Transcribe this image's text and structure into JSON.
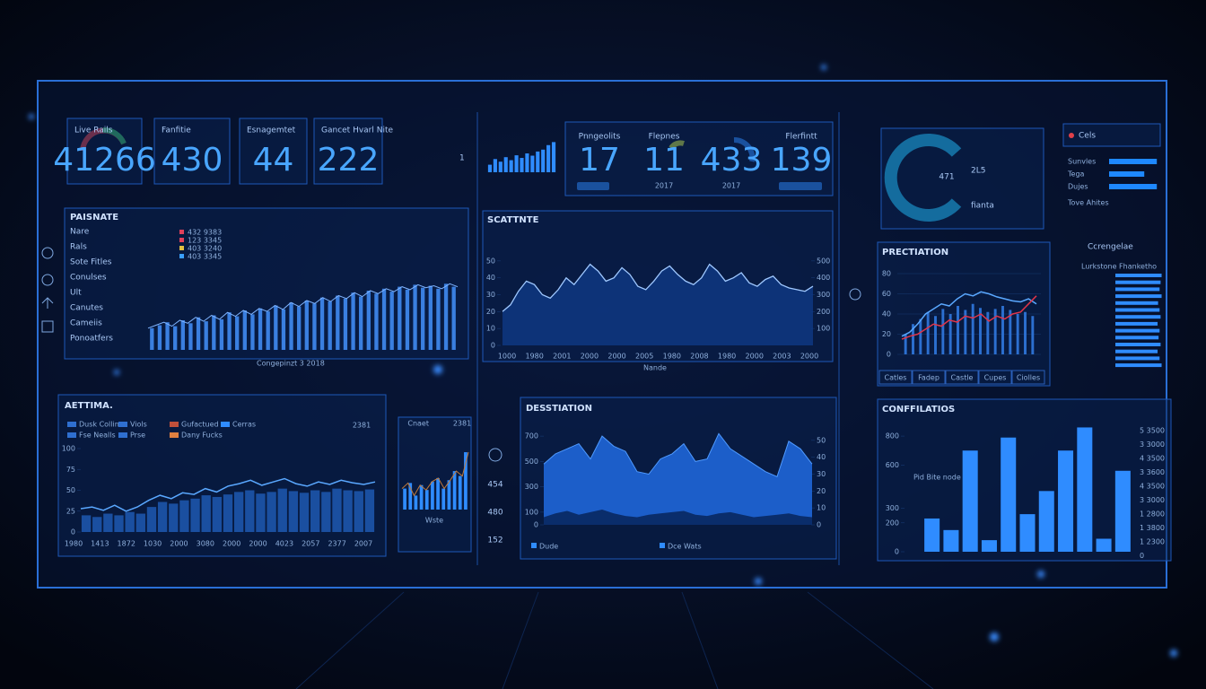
{
  "header_kpis": {
    "cards": [
      {
        "label": "Live Rails",
        "value": 41266
      },
      {
        "label": "Fanfitie",
        "value": 430
      },
      {
        "label": "Esnagemtet",
        "value": 44
      },
      {
        "label": "Gancet Hvarl Nite",
        "value": 222
      }
    ],
    "side": 1
  },
  "mid_kpis": {
    "color": "#2f8cff",
    "ylim": [
      0,
      100
    ],
    "bars": [
      20,
      35,
      28,
      40,
      32,
      45,
      38,
      50,
      44,
      55,
      60,
      72,
      80
    ],
    "cards": [
      {
        "label": "Pnngeolits",
        "value": 17
      },
      {
        "label": "Flepnes",
        "value": 11,
        "sub": "2017"
      },
      {
        "value": 433,
        "sub": "2017"
      },
      {
        "label": "Flerfintt",
        "value": 139
      }
    ]
  },
  "summary": {
    "ring_value": 471,
    "value": "2L5",
    "caption": "fianta",
    "legend": "Cels",
    "color": "#1e88ff",
    "xlim": [
      0,
      100
    ],
    "rows": [
      {
        "label": "Sunvles",
        "value": 95
      },
      {
        "label": "Tega",
        "value": 70
      },
      {
        "label": "Dujes",
        "value": 95
      }
    ],
    "note": "Tove Ahites"
  },
  "panel_a": {
    "title": "PAISNATE",
    "color": "#3a7fe0",
    "ylim": [
      0,
      100
    ],
    "menu": [
      "Nare",
      "Rals",
      "Sote Fitles",
      "Conulses",
      "Ult",
      "Canutes",
      "Cameiis",
      "Ponoatfers"
    ],
    "legend": [
      "432 9383",
      "123 3345",
      "403 3240",
      "403 3345"
    ],
    "legend_colors": [
      "#e0405a",
      "#e0405a",
      "#e0c040",
      "#3a9fff"
    ],
    "footer": "Congepinzt 3 2018",
    "values": [
      22,
      25,
      28,
      24,
      30,
      27,
      33,
      29,
      35,
      31,
      38,
      34,
      40,
      36,
      42,
      39,
      45,
      41,
      48,
      44,
      50,
      47,
      53,
      49,
      55,
      52,
      58,
      54,
      60,
      57,
      62,
      59,
      64,
      61,
      66,
      63,
      65,
      62,
      67,
      64
    ]
  },
  "panel_b": {
    "title": "SCATTNTE",
    "x_label": "Nande",
    "color": "#9fc8ff",
    "fill": "#0f3a86",
    "ylim": [
      0,
      60
    ],
    "yticks": [
      0,
      10,
      20,
      30,
      40,
      50
    ],
    "y2lim": [
      0,
      600
    ],
    "y2ticks": [
      100,
      200,
      300,
      400,
      500
    ],
    "xlabels": [
      "1000",
      "1980",
      "2001",
      "2000",
      "2000",
      "2005",
      "1980",
      "2008",
      "1980",
      "2000",
      "2003",
      "2000"
    ],
    "values": [
      20,
      24,
      32,
      38,
      36,
      30,
      28,
      33,
      40,
      36,
      42,
      48,
      44,
      38,
      40,
      46,
      42,
      35,
      33,
      38,
      44,
      47,
      42,
      38,
      36,
      40,
      48,
      44,
      38,
      40,
      43,
      37,
      35,
      39,
      41,
      36,
      34,
      33,
      32,
      35
    ]
  },
  "panel_c": {
    "title": "PRECTIATION",
    "ylim": [
      0,
      80
    ],
    "yticks": [
      0,
      20,
      40,
      60,
      80
    ],
    "colors": [
      "#5aa8ff",
      "#e0354a",
      "#2c6fd0"
    ],
    "tabs": [
      "Catles",
      "Fadep",
      "Castle",
      "Cupes",
      "Ciolles"
    ],
    "blue": [
      18,
      22,
      30,
      40,
      45,
      50,
      48,
      55,
      60,
      58,
      62,
      60,
      57,
      55,
      53,
      52,
      55,
      50
    ],
    "red": [
      15,
      18,
      20,
      25,
      30,
      28,
      34,
      32,
      38,
      36,
      40,
      33,
      38,
      35,
      40,
      42,
      50,
      58
    ],
    "bars": [
      20,
      30,
      35,
      42,
      38,
      45,
      40,
      48,
      44,
      50,
      46,
      42,
      45,
      48,
      44,
      40,
      42,
      38
    ]
  },
  "right_list": {
    "title": "Ccrengelae",
    "subtitle": "Lurkstone Fhanketho",
    "color": "#2f8cff",
    "xlim": [
      0,
      100
    ],
    "values": [
      92,
      90,
      88,
      92,
      85,
      88,
      90,
      84,
      88,
      86,
      90,
      84,
      88,
      92
    ]
  },
  "panel_d": {
    "title": "AETTIMA.",
    "badge": "2381",
    "ylim": [
      0,
      100
    ],
    "yticks": [
      0,
      25,
      50,
      75,
      100
    ],
    "colors": [
      "#5aa8ff",
      "#1a4fa0"
    ],
    "legend": [
      "Dusk Collins",
      "Viols",
      "Gufactued",
      "Cerras",
      "Fse Nealls",
      "Prse",
      "Dany Fucks"
    ],
    "legend_colors": [
      "#2f6fd0",
      "#2f6fd0",
      "#c0503a",
      "#2f8cff",
      "#2f6fd0",
      "#2f6fd0",
      "#e08040"
    ],
    "xlabels": [
      "1980",
      "1413",
      "1872",
      "1030",
      "2000",
      "3080",
      "2000",
      "2000",
      "4023",
      "2057",
      "2377",
      "2007"
    ],
    "line": [
      28,
      30,
      26,
      32,
      25,
      30,
      38,
      44,
      40,
      47,
      45,
      52,
      48,
      55,
      58,
      62,
      56,
      60,
      64,
      58,
      55,
      60,
      57,
      62,
      59,
      57,
      60
    ],
    "bars": [
      20,
      18,
      22,
      20,
      24,
      22,
      30,
      36,
      34,
      38,
      40,
      44,
      42,
      45,
      48,
      50,
      46,
      48,
      52,
      49,
      47,
      50,
      48,
      52,
      50,
      49,
      51
    ]
  },
  "panel_e": {
    "legend": "Cnaet",
    "badge": "2381",
    "x_label": "Wste",
    "ylim": [
      0,
      100
    ],
    "colors": [
      "#2f8cff",
      "#c07a3a"
    ],
    "bars": [
      30,
      38,
      20,
      35,
      28,
      40,
      45,
      30,
      42,
      55,
      48,
      82
    ],
    "side": [
      454,
      480,
      152
    ]
  },
  "panel_f": {
    "title": "DESSTIATION",
    "ylim": [
      0,
      800
    ],
    "yticks": [
      0,
      100,
      300,
      500,
      700
    ],
    "y2lim": [
      0,
      60
    ],
    "y2ticks": [
      0,
      10,
      20,
      30,
      40,
      50
    ],
    "colors": [
      "#1f66d8",
      "#0a2a66"
    ],
    "legend": [
      "Dude",
      "Dce Wats"
    ],
    "area": [
      480,
      560,
      600,
      640,
      520,
      700,
      620,
      580,
      420,
      400,
      520,
      560,
      640,
      500,
      520,
      720,
      600,
      540,
      480,
      420,
      380,
      660,
      600,
      480
    ],
    "base": [
      60,
      90,
      110,
      80,
      100,
      120,
      90,
      70,
      60,
      80,
      90,
      100,
      110,
      80,
      70,
      90,
      100,
      80,
      60,
      70,
      80,
      90,
      70,
      60
    ]
  },
  "panel_g": {
    "title": "CONFFILATIOS",
    "note": "Pid Bite node",
    "color": "#2f8cff",
    "ylim": [
      0,
      900
    ],
    "yticks": [
      0,
      200,
      300,
      600,
      800
    ],
    "right_labels": [
      "5 3500",
      "3 3000",
      "4 3500",
      "3 3600",
      "4 3500",
      "3 3000",
      "1 2800",
      "1 3800",
      "1 2300",
      "0"
    ],
    "bars": [
      230,
      150,
      700,
      80,
      790,
      260,
      420,
      700,
      860,
      90,
      560
    ]
  }
}
